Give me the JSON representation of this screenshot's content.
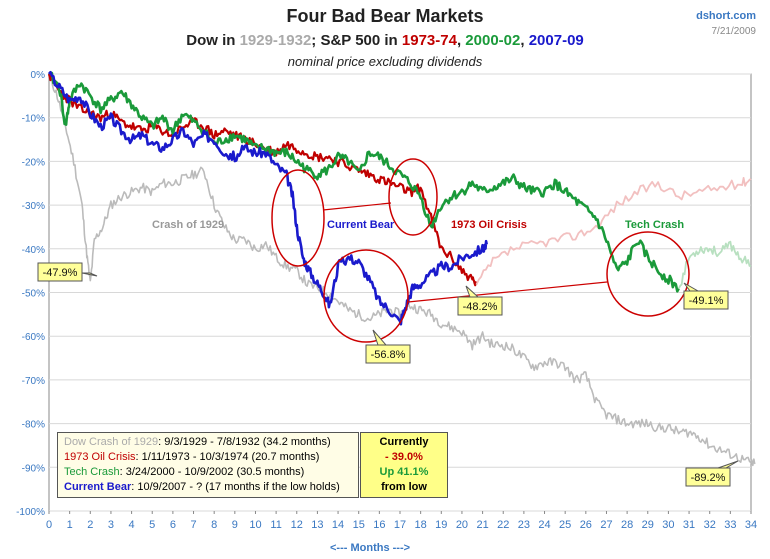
{
  "header": {
    "title": "Four Bad Bear Markets",
    "sub_part1": "Dow in ",
    "sub_part2": "1929-1932",
    "sub_part3": "; S&P 500 in ",
    "sub_part4": "1973-74",
    "sub_part5": ", ",
    "sub_part6": "2000-02",
    "sub_part7": ", ",
    "sub_part8": "2007-09",
    "subtitle2": "nominal price excluding dividends",
    "source": "dshort.com",
    "date": "7/21/2009"
  },
  "colors": {
    "crash1929": "#bbbbbb",
    "oil1973": "#c00000",
    "tech2000": "#1a9a3a",
    "current": "#1a1acc",
    "oil_faded": "#f2c0c0",
    "tech_faded": "#b8e0c0",
    "circle": "#cc0000",
    "callout": "#ffff99"
  },
  "chart_data": {
    "type": "line",
    "xlabel": "<--- Months --->",
    "ylabel": "",
    "xlim": [
      0,
      34
    ],
    "ylim": [
      -100,
      0
    ],
    "x_ticks": [
      "0",
      "1",
      "2",
      "3",
      "4",
      "5",
      "6",
      "7",
      "8",
      "9",
      "10",
      "11",
      "12",
      "13",
      "14",
      "15",
      "16",
      "17",
      "18",
      "19",
      "20",
      "21",
      "22",
      "23",
      "24",
      "25",
      "26",
      "27",
      "28",
      "29",
      "30",
      "31",
      "32",
      "33",
      "34"
    ],
    "y_ticks": [
      "0%",
      "-10%",
      "-20%",
      "-30%",
      "-40%",
      "-50%",
      "-60%",
      "-70%",
      "-80%",
      "-90%",
      "-100%"
    ],
    "series": [
      {
        "name": "Crash of 1929",
        "color": "#bbbbbb",
        "x": [
          0,
          0.4,
          0.8,
          1.2,
          1.6,
          1.8,
          2.0,
          2.2,
          2.6,
          3.0,
          3.5,
          4.0,
          4.5,
          5.0,
          5.5,
          6.0,
          6.5,
          7.0,
          7.5,
          8.0,
          8.5,
          9.0,
          9.5,
          10.0,
          10.5,
          11.0,
          11.5,
          12.0,
          12.5,
          13.0,
          13.5,
          14.0,
          14.5,
          15.0,
          15.5,
          16.0,
          16.5,
          17.0,
          17.5,
          18.0,
          18.5,
          19.0,
          19.5,
          20.0,
          20.5,
          21.0,
          21.5,
          22.0,
          22.5,
          23.0,
          23.5,
          24.0,
          24.5,
          25.0,
          25.5,
          26.0,
          26.5,
          27.0,
          27.5,
          28.0,
          28.5,
          29.0,
          29.5,
          30.0,
          30.5,
          31.0,
          31.5,
          32.0,
          32.5,
          33.0,
          33.5,
          34.0,
          34.2
        ],
        "y": [
          0,
          -5,
          -12,
          -20,
          -30,
          -40,
          -47.9,
          -38,
          -35,
          -30,
          -28,
          -27,
          -26,
          -27,
          -25,
          -25,
          -24,
          -23,
          -22,
          -30,
          -35,
          -38,
          -38,
          -40,
          -39,
          -42,
          -44,
          -45,
          -48,
          -49,
          -50,
          -52,
          -54,
          -55,
          -56,
          -55,
          -54,
          -55,
          -53,
          -54,
          -55,
          -57,
          -58,
          -59,
          -62,
          -60,
          -62,
          -62,
          -63,
          -65,
          -67,
          -66,
          -66,
          -67,
          -70,
          -69,
          -75,
          -78,
          -79,
          -80,
          -80,
          -80,
          -81,
          -81,
          -82,
          -82,
          -83,
          -85,
          -86,
          -87,
          -88,
          -89,
          -89.2
        ]
      },
      {
        "name": "1973 Oil Crisis",
        "color": "#c00000",
        "x": [
          0,
          0.5,
          1.0,
          1.5,
          2.0,
          2.5,
          3.0,
          3.5,
          4.0,
          4.5,
          5.0,
          5.5,
          6.0,
          6.5,
          7.0,
          7.5,
          8.0,
          8.5,
          9.0,
          9.5,
          10.0,
          10.5,
          11.0,
          11.5,
          12.0,
          12.5,
          13.0,
          13.5,
          14.0,
          14.5,
          15.0,
          15.5,
          16.0,
          16.5,
          17.0,
          17.5,
          18.0,
          18.5,
          19.0,
          19.5,
          20.0,
          20.5,
          20.7
        ],
        "y": [
          0,
          -4,
          -6,
          -8,
          -9,
          -10,
          -9,
          -11,
          -12,
          -13,
          -12,
          -13,
          -14,
          -12,
          -11,
          -12,
          -14,
          -13,
          -14,
          -15,
          -16,
          -17,
          -18,
          -16,
          -17,
          -18,
          -19,
          -19,
          -20,
          -21,
          -22,
          -23,
          -24,
          -25,
          -26,
          -27,
          -26,
          -33,
          -40,
          -42,
          -45,
          -47,
          -48.2
        ]
      },
      {
        "name": "Oil Crisis recovery",
        "color": "#f2c0c0",
        "x": [
          20.7,
          21.5,
          22.5,
          23.5,
          24.5,
          25.5,
          26.5,
          27.5,
          28.5,
          29.5,
          30.5,
          31.5,
          32.5,
          33.5,
          34.0
        ],
        "y": [
          -48.2,
          -43,
          -40,
          -39,
          -38,
          -37,
          -35,
          -30,
          -27,
          -25,
          -28,
          -27,
          -26,
          -25,
          -24
        ]
      },
      {
        "name": "Tech Crash",
        "color": "#1a9a3a",
        "x": [
          0,
          0.5,
          0.8,
          1.0,
          1.5,
          2.0,
          2.5,
          3.0,
          3.5,
          4.0,
          4.5,
          5.0,
          5.5,
          6.0,
          6.5,
          7.0,
          7.5,
          8.0,
          8.5,
          9.0,
          9.5,
          10.0,
          10.5,
          11.0,
          11.5,
          12.0,
          12.5,
          13.0,
          13.5,
          14.0,
          14.5,
          15.0,
          15.5,
          16.0,
          16.5,
          17.0,
          17.5,
          18.0,
          18.5,
          19.0,
          19.5,
          20.0,
          20.5,
          21.0,
          21.5,
          22.0,
          22.5,
          23.0,
          23.5,
          24.0,
          24.5,
          25.0,
          25.5,
          26.0,
          26.5,
          27.0,
          27.5,
          28.0,
          28.5,
          29.0,
          29.5,
          30.0,
          30.5
        ],
        "y": [
          0,
          -3,
          -12,
          -6,
          -2,
          -5,
          -8,
          -6,
          -4,
          -7,
          -10,
          -12,
          -10,
          -13,
          -9,
          -11,
          -13,
          -16,
          -15,
          -14,
          -15,
          -17,
          -17,
          -18,
          -18,
          -20,
          -22,
          -23,
          -22,
          -19,
          -20,
          -23,
          -18,
          -19,
          -21,
          -23,
          -25,
          -28,
          -35,
          -30,
          -28,
          -27,
          -25,
          -27,
          -26,
          -25,
          -24,
          -26,
          -27,
          -27,
          -25,
          -27,
          -29,
          -31,
          -33,
          -38,
          -45,
          -43,
          -38,
          -42,
          -45,
          -47,
          -49.1
        ]
      },
      {
        "name": "Tech recovery",
        "color": "#b8e0c0",
        "x": [
          30.5,
          31.0,
          31.5,
          32.0,
          32.5,
          33.0,
          33.5,
          34.0
        ],
        "y": [
          -49.1,
          -42,
          -40,
          -40,
          -41,
          -39,
          -42,
          -44
        ]
      },
      {
        "name": "Current Bear",
        "color": "#1a1acc",
        "x": [
          0,
          0.5,
          1.0,
          1.5,
          2.0,
          2.5,
          3.0,
          3.5,
          4.0,
          4.5,
          5.0,
          5.5,
          6.0,
          6.5,
          7.0,
          7.5,
          8.0,
          8.5,
          9.0,
          9.5,
          10.0,
          10.5,
          11.0,
          11.5,
          11.8,
          12.0,
          12.3,
          12.6,
          13.0,
          13.3,
          13.6,
          14.0,
          14.5,
          15.0,
          15.5,
          16.0,
          16.5,
          17.0,
          17.3,
          17.6,
          18.0,
          18.5,
          19.0,
          19.5,
          20.0,
          20.5,
          21.0,
          21.2
        ],
        "y": [
          0,
          -3,
          -6,
          -5,
          -9,
          -12,
          -10,
          -13,
          -15,
          -14,
          -16,
          -17,
          -15,
          -13,
          -16,
          -14,
          -15,
          -18,
          -19,
          -17,
          -18,
          -18,
          -21,
          -23,
          -28,
          -35,
          -42,
          -45,
          -48,
          -50,
          -53,
          -44,
          -42,
          -43,
          -47,
          -52,
          -54,
          -56.8,
          -53,
          -49,
          -48,
          -46,
          -44,
          -44,
          -42,
          -41,
          -40,
          -39
        ]
      }
    ],
    "annotations": [
      {
        "text": "Crash of 1929",
        "color": "#999999"
      },
      {
        "text": "Current Bear",
        "color": "#1a1acc"
      },
      {
        "text": "1973 Oil Crisis",
        "color": "#c00000"
      },
      {
        "text": "Tech Crash",
        "color": "#1a9a3a"
      }
    ],
    "callouts": [
      "-47.9%",
      "-56.8%",
      "-48.2%",
      "-49.1%",
      "-89.2%"
    ]
  },
  "legend": {
    "row1_name": "Dow Crash of 1929",
    "row1_text": ": 9/3/1929  - 7/8/1932  (34.2 months)",
    "row2_name": "1973 Oil Crisis",
    "row2_text": ": 1/11/1973  - 10/3/1974  (20.7 months)",
    "row3_name": "Tech Crash",
    "row3_text": ":  3/24/2000  - 10/9/2002  (30.5 months)",
    "row4_name": "Current Bear",
    "row4_text": ": 10/9/2007  - ?  (17 months if the low holds)"
  },
  "currently": {
    "label": "Currently",
    "down": "- 39.0%",
    "up": "Up 41.1%",
    "from": "from low"
  }
}
